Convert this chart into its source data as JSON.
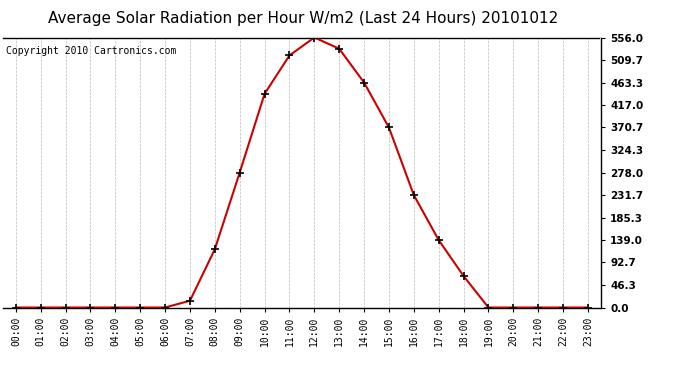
{
  "title": "Average Solar Radiation per Hour W/m2 (Last 24 Hours) 20101012",
  "copyright": "Copyright 2010 Cartronics.com",
  "x_labels": [
    "00:00",
    "01:00",
    "02:00",
    "03:00",
    "04:00",
    "05:00",
    "06:00",
    "07:00",
    "08:00",
    "09:00",
    "10:00",
    "11:00",
    "12:00",
    "13:00",
    "14:00",
    "15:00",
    "16:00",
    "17:00",
    "18:00",
    "19:00",
    "20:00",
    "21:00",
    "22:00",
    "23:00"
  ],
  "y_values": [
    0.0,
    0.0,
    0.0,
    0.0,
    0.0,
    0.0,
    0.0,
    14.0,
    120.0,
    278.0,
    440.0,
    519.0,
    556.0,
    533.0,
    463.3,
    370.7,
    231.7,
    139.0,
    65.0,
    0.0,
    0.0,
    0.0,
    0.0,
    0.0
  ],
  "y_ticks": [
    0.0,
    46.3,
    92.7,
    139.0,
    185.3,
    231.7,
    278.0,
    324.3,
    370.7,
    417.0,
    463.3,
    509.7,
    556.0
  ],
  "y_tick_labels": [
    "0.0",
    "46.3",
    "92.7",
    "139.0",
    "185.3",
    "231.7",
    "278.0",
    "324.3",
    "370.7",
    "417.0",
    "463.3",
    "509.7",
    "556.0"
  ],
  "y_min": 0.0,
  "y_max": 556.0,
  "line_color": "#cc0000",
  "marker_color": "#000000",
  "bg_color": "#ffffff",
  "grid_color": "#bbbbbb",
  "title_fontsize": 11,
  "copyright_fontsize": 7
}
